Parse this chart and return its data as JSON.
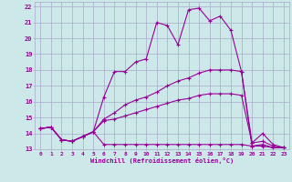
{
  "xlabel": "Windchill (Refroidissement éolien,°C)",
  "background_color": "#cce8e8",
  "grid_color": "#aaaacc",
  "line_color": "#990099",
  "xlim": [
    -0.5,
    23.5
  ],
  "ylim": [
    13,
    22.3
  ],
  "xticks": [
    0,
    1,
    2,
    3,
    4,
    5,
    6,
    7,
    8,
    9,
    10,
    11,
    12,
    13,
    14,
    15,
    16,
    17,
    18,
    19,
    20,
    21,
    22,
    23
  ],
  "yticks": [
    13,
    14,
    15,
    16,
    17,
    18,
    19,
    20,
    21,
    22
  ],
  "series": [
    {
      "x": [
        0,
        1,
        2,
        3,
        4,
        5,
        6,
        7,
        8,
        9,
        10,
        11,
        12,
        13,
        14,
        15,
        16,
        17,
        18,
        19,
        20,
        21,
        22,
        23
      ],
      "y": [
        14.3,
        14.4,
        13.6,
        13.5,
        13.8,
        14.1,
        16.3,
        17.9,
        17.9,
        18.5,
        18.7,
        21.0,
        20.8,
        19.6,
        21.8,
        21.9,
        21.1,
        21.4,
        20.5,
        17.9,
        13.2,
        13.3,
        13.1,
        13.1
      ]
    },
    {
      "x": [
        0,
        1,
        2,
        3,
        4,
        5,
        6,
        7,
        8,
        9,
        10,
        11,
        12,
        13,
        14,
        15,
        16,
        17,
        18,
        19,
        20,
        21,
        22,
        23
      ],
      "y": [
        14.3,
        14.4,
        13.6,
        13.5,
        13.8,
        14.1,
        14.9,
        15.3,
        15.8,
        16.1,
        16.3,
        16.6,
        17.0,
        17.3,
        17.5,
        17.8,
        18.0,
        18.0,
        18.0,
        17.9,
        13.4,
        14.0,
        13.3,
        13.1
      ]
    },
    {
      "x": [
        0,
        1,
        2,
        3,
        4,
        5,
        6,
        7,
        8,
        9,
        10,
        11,
        12,
        13,
        14,
        15,
        16,
        17,
        18,
        19,
        20,
        21,
        22,
        23
      ],
      "y": [
        14.3,
        14.4,
        13.6,
        13.5,
        13.8,
        14.1,
        14.8,
        14.9,
        15.1,
        15.3,
        15.5,
        15.7,
        15.9,
        16.1,
        16.2,
        16.4,
        16.5,
        16.5,
        16.5,
        16.4,
        13.4,
        13.5,
        13.2,
        13.1
      ]
    },
    {
      "x": [
        0,
        1,
        2,
        3,
        4,
        5,
        6,
        7,
        8,
        9,
        10,
        11,
        12,
        13,
        14,
        15,
        16,
        17,
        18,
        19,
        20,
        21,
        22,
        23
      ],
      "y": [
        14.3,
        14.4,
        13.6,
        13.5,
        13.8,
        14.1,
        13.3,
        13.3,
        13.3,
        13.3,
        13.3,
        13.3,
        13.3,
        13.3,
        13.3,
        13.3,
        13.3,
        13.3,
        13.3,
        13.3,
        13.2,
        13.2,
        13.1,
        13.1
      ]
    }
  ]
}
